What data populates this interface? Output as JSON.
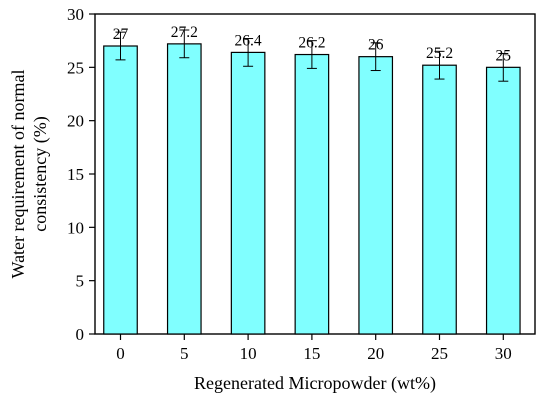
{
  "chart_data": {
    "type": "bar",
    "title": "",
    "categories": [
      "0",
      "5",
      "10",
      "15",
      "20",
      "25",
      "30"
    ],
    "values": [
      27,
      27.2,
      26.4,
      26.2,
      26,
      25.2,
      25
    ],
    "data_labels": [
      "27",
      "27.2",
      "26.4",
      "26.2",
      "26",
      "25.2",
      "25"
    ],
    "error": [
      1.3,
      1.3,
      1.3,
      1.3,
      1.3,
      1.3,
      1.3
    ],
    "xlabel": "Regenerated Micropowder (wt%)",
    "ylabel_lines": [
      "Water requirement of normal",
      "consistency (%)"
    ],
    "ylim": [
      0,
      30
    ],
    "yticks": [
      "0",
      "5",
      "10",
      "15",
      "20",
      "25",
      "30"
    ],
    "grid": false,
    "legend": "none",
    "bar_color": "#80ffff"
  }
}
